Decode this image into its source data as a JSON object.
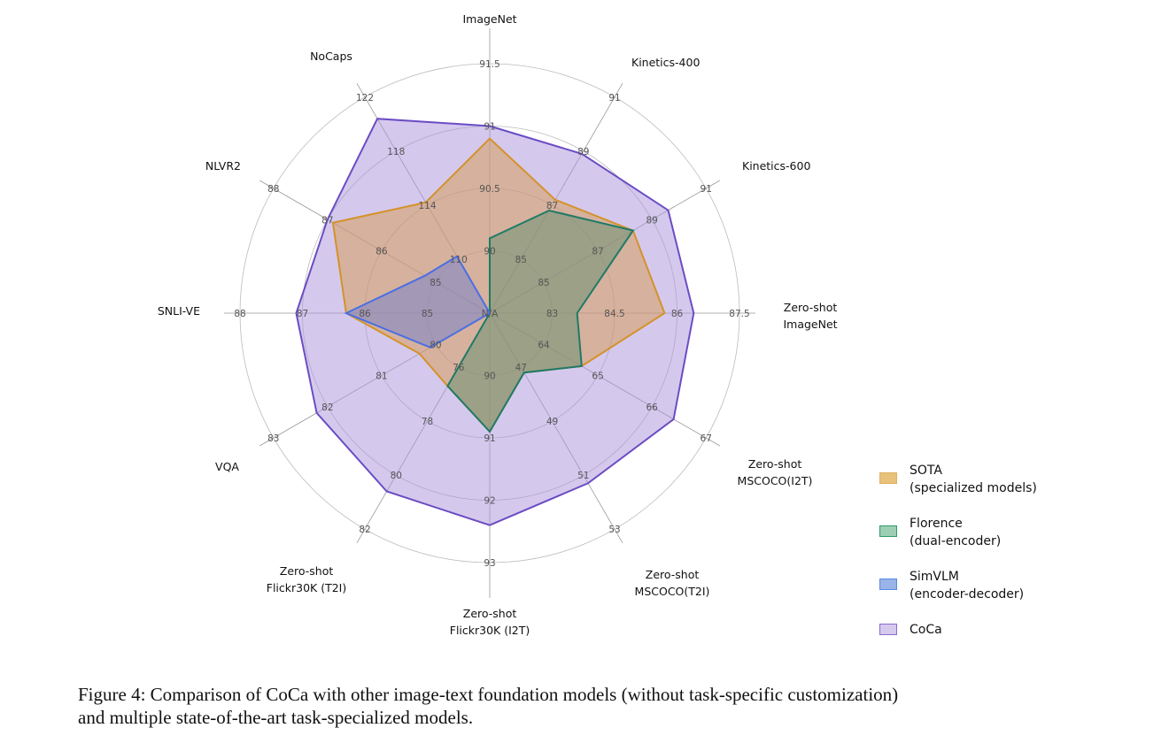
{
  "chart_data": {
    "type": "radar",
    "center_label": "N/A",
    "axes": [
      {
        "label": [
          "ImageNet"
        ],
        "ticks": [
          90,
          90.5,
          91,
          91.5
        ]
      },
      {
        "label": [
          "Kinetics-400"
        ],
        "ticks": [
          85,
          87,
          89,
          91
        ]
      },
      {
        "label": [
          "Kinetics-600"
        ],
        "ticks": [
          85,
          87,
          89,
          91
        ]
      },
      {
        "label": [
          "Zero-shot",
          "ImageNet"
        ],
        "ticks": [
          83,
          84.5,
          86,
          87.5
        ]
      },
      {
        "label": [
          "Zero-shot",
          "MSCOCO(I2T)"
        ],
        "ticks": [
          64,
          65,
          66,
          67
        ]
      },
      {
        "label": [
          "Zero-shot",
          "MSCOCO(T2I)"
        ],
        "ticks": [
          47,
          49,
          51,
          53
        ]
      },
      {
        "label": [
          "Zero-shot",
          "Flickr30K (I2T)"
        ],
        "ticks": [
          90,
          91,
          92,
          93
        ]
      },
      {
        "label": [
          "Zero-shot",
          "Flickr30K (T2I)"
        ],
        "ticks": [
          76,
          78,
          80,
          82
        ]
      },
      {
        "label": [
          "VQA"
        ],
        "ticks": [
          80,
          81,
          82,
          83
        ]
      },
      {
        "label": [
          "SNLI-VE"
        ],
        "ticks": [
          85,
          86,
          87,
          88
        ]
      },
      {
        "label": [
          "NLVR2"
        ],
        "ticks": [
          85,
          86,
          87,
          88
        ]
      },
      {
        "label": [
          "NoCaps"
        ],
        "ticks": [
          110,
          114,
          118,
          122
        ]
      }
    ],
    "series": [
      {
        "name": "CoCa",
        "sub": "",
        "stroke": "#6b4cc4",
        "fill": "#a993dc",
        "values": [
          91.0,
          88.9,
          89.6,
          86.4,
          66.4,
          51.3,
          92.4,
          80.6,
          82.2,
          87.1,
          87.0,
          120.4
        ]
      },
      {
        "name": "SOTA",
        "sub": "(specialized models)",
        "stroke": "#d4922a",
        "fill": "#d89a4e",
        "values": [
          90.9,
          87.2,
          88.3,
          85.7,
          64.7,
          47.2,
          90.9,
          76.7,
          80.3,
          86.3,
          86.9,
          114.2
        ]
      },
      {
        "name": "Florence",
        "sub": "(dual-encoder)",
        "stroke": "#1f7a66",
        "fill": "#5f8f72",
        "values": [
          90.1,
          86.8,
          88.3,
          83.6,
          64.7,
          47.2,
          90.9,
          76.7,
          null,
          null,
          null,
          null
        ]
      },
      {
        "name": "SimVLM",
        "sub": "(encoder-decoder)",
        "stroke": "#4a6fe3",
        "fill": "#6f7fd0",
        "values": [
          null,
          null,
          null,
          null,
          null,
          null,
          null,
          null,
          80.1,
          86.3,
          85.2,
          110.2
        ]
      }
    ],
    "legend": [
      {
        "name": "SOTA",
        "sub": "(specialized models)",
        "fill": "#e8c27a",
        "stroke": "#e0b060"
      },
      {
        "name": "Florence",
        "sub": "(dual-encoder)",
        "fill": "#9ecfb4",
        "stroke": "#2f9a6a"
      },
      {
        "name": "SimVLM",
        "sub": "(encoder-decoder)",
        "fill": "#9ab4e8",
        "stroke": "#5a8ae8"
      },
      {
        "name": "CoCa",
        "sub": "",
        "fill": "#d6c9ee",
        "stroke": "#8a6ad0"
      }
    ],
    "legend_placement": "bottom-right"
  },
  "caption": {
    "line1": "Figure 4: Comparison of CoCa with other image-text foundation models (without task-specific customization)",
    "line2": "and multiple state-of-the-art task-specialized models."
  }
}
